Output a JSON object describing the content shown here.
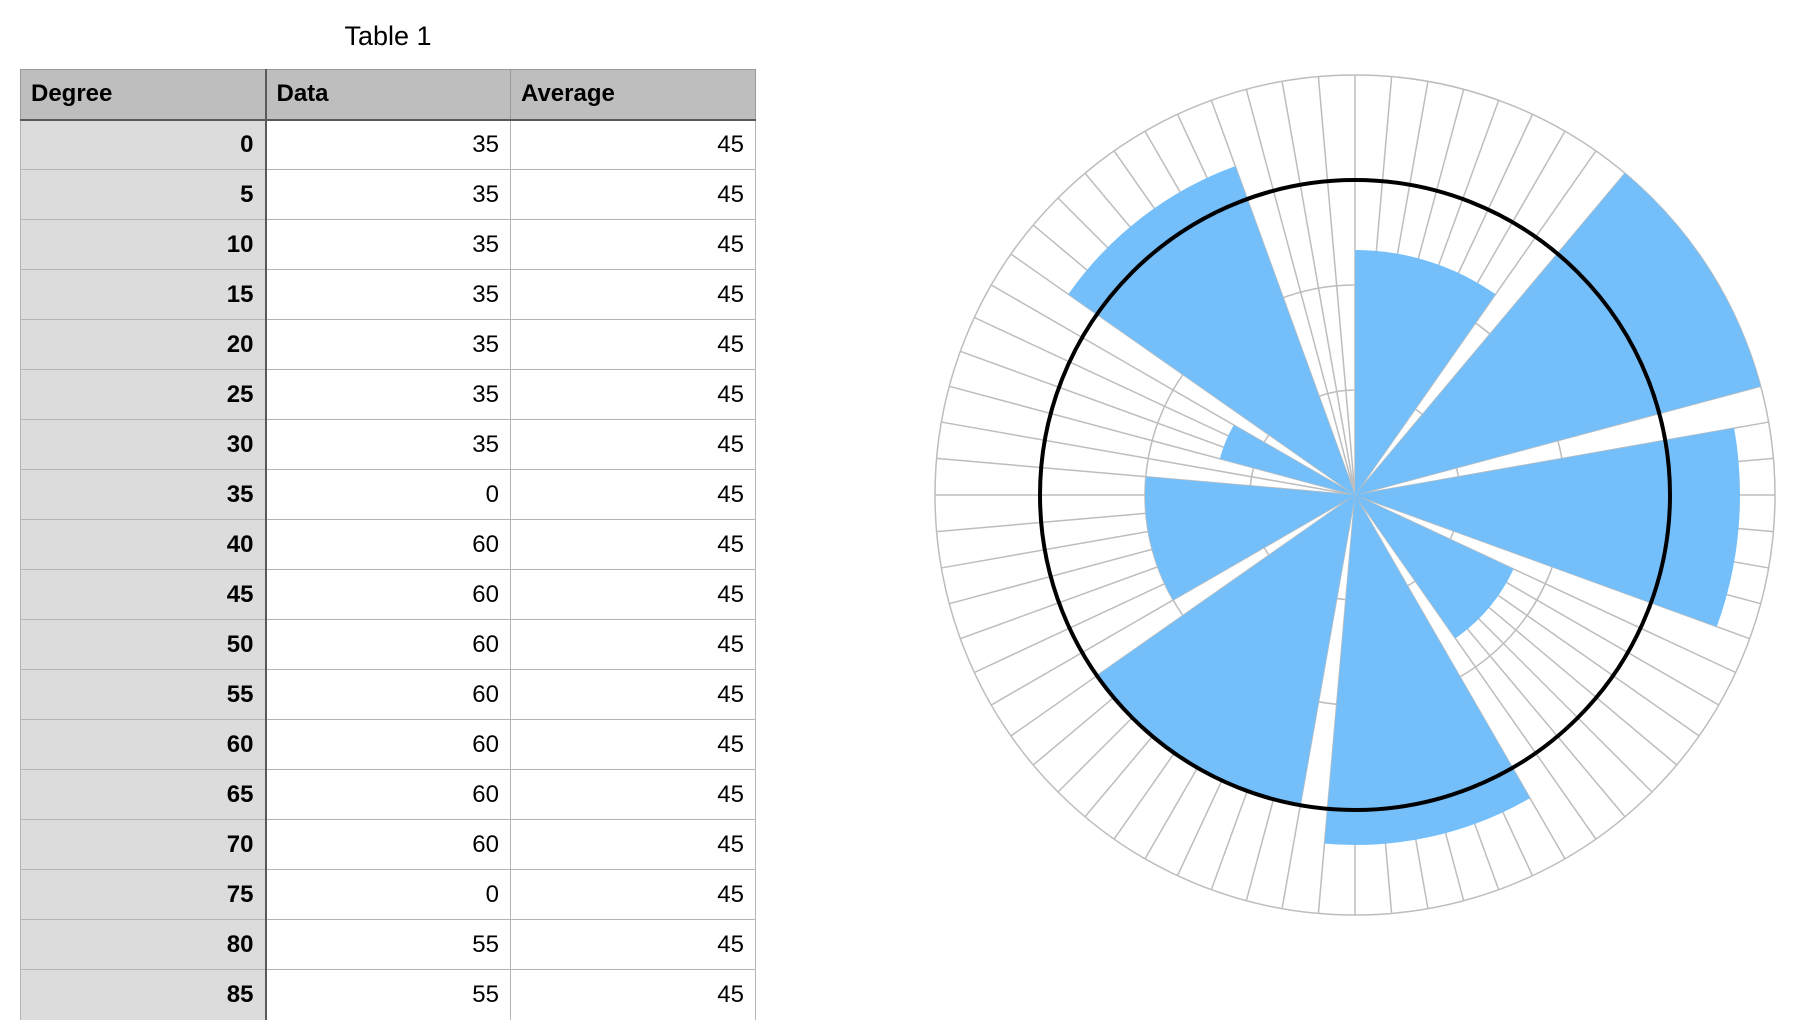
{
  "table": {
    "title": "Table 1",
    "columns": [
      "Degree",
      "Data",
      "Average"
    ],
    "rows": [
      [
        "0",
        "35",
        "45"
      ],
      [
        "5",
        "35",
        "45"
      ],
      [
        "10",
        "35",
        "45"
      ],
      [
        "15",
        "35",
        "45"
      ],
      [
        "20",
        "35",
        "45"
      ],
      [
        "25",
        "35",
        "45"
      ],
      [
        "30",
        "35",
        "45"
      ],
      [
        "35",
        "0",
        "45"
      ],
      [
        "40",
        "60",
        "45"
      ],
      [
        "45",
        "60",
        "45"
      ],
      [
        "50",
        "60",
        "45"
      ],
      [
        "55",
        "60",
        "45"
      ],
      [
        "60",
        "60",
        "45"
      ],
      [
        "65",
        "60",
        "45"
      ],
      [
        "70",
        "60",
        "45"
      ],
      [
        "75",
        "0",
        "45"
      ],
      [
        "80",
        "55",
        "45"
      ],
      [
        "85",
        "55",
        "45"
      ]
    ]
  },
  "chart_data": {
    "type": "polar-bar",
    "angular_step_degrees": 5,
    "radial_range": [
      0,
      60
    ],
    "radial_gridlines": [
      15,
      30,
      45,
      60
    ],
    "grid": true,
    "average_circle": 45,
    "segments": [
      {
        "start": 0,
        "end": 35,
        "value": 35
      },
      {
        "start": 35,
        "end": 40,
        "value": 0
      },
      {
        "start": 40,
        "end": 75,
        "value": 60
      },
      {
        "start": 75,
        "end": 80,
        "value": 0
      },
      {
        "start": 80,
        "end": 110,
        "value": 55
      },
      {
        "start": 110,
        "end": 115,
        "value": 0
      },
      {
        "start": 115,
        "end": 145,
        "value": 25
      },
      {
        "start": 145,
        "end": 150,
        "value": 0
      },
      {
        "start": 150,
        "end": 185,
        "value": 50
      },
      {
        "start": 185,
        "end": 190,
        "value": 0
      },
      {
        "start": 190,
        "end": 235,
        "value": 45
      },
      {
        "start": 235,
        "end": 240,
        "value": 0
      },
      {
        "start": 240,
        "end": 275,
        "value": 30
      },
      {
        "start": 275,
        "end": 285,
        "value": 0
      },
      {
        "start": 285,
        "end": 300,
        "value": 20
      },
      {
        "start": 300,
        "end": 305,
        "value": 0
      },
      {
        "start": 305,
        "end": 340,
        "value": 50
      },
      {
        "start": 340,
        "end": 360,
        "value": 0
      }
    ],
    "colors": {
      "bars": "#74bff9",
      "average": "#000000",
      "grid": "#bdbdbd"
    }
  }
}
